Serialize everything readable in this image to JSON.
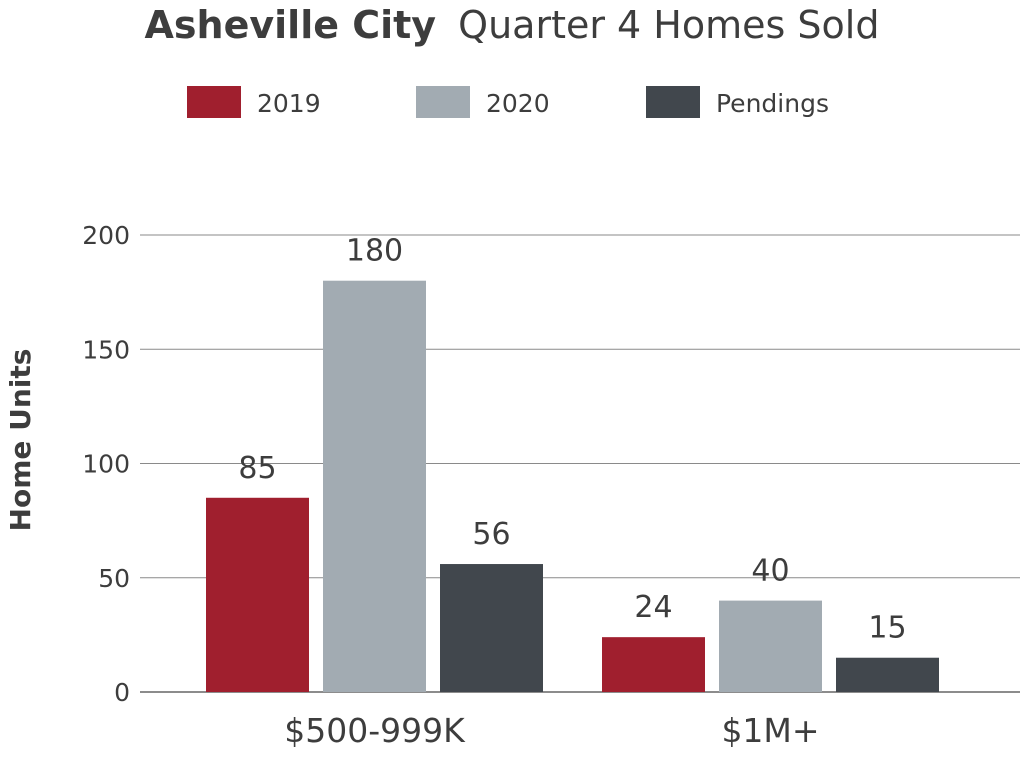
{
  "chart_data": {
    "type": "bar",
    "title_bold": "Asheville City",
    "title_rest": "Quarter 4 Homes Sold",
    "ylabel": "Home Units",
    "xlabel": "",
    "ylim": [
      0,
      200
    ],
    "yticks": [
      0,
      50,
      100,
      150,
      200
    ],
    "grid": true,
    "legend_position": "top",
    "categories": [
      "$500-999K",
      "$1M+"
    ],
    "series": [
      {
        "name": "2019",
        "color": "#a01f2e",
        "values": [
          85,
          24
        ]
      },
      {
        "name": "2020",
        "color": "#a2abb2",
        "values": [
          180,
          40
        ]
      },
      {
        "name": "Pendings",
        "color": "#41474d",
        "values": [
          56,
          15
        ]
      }
    ]
  }
}
